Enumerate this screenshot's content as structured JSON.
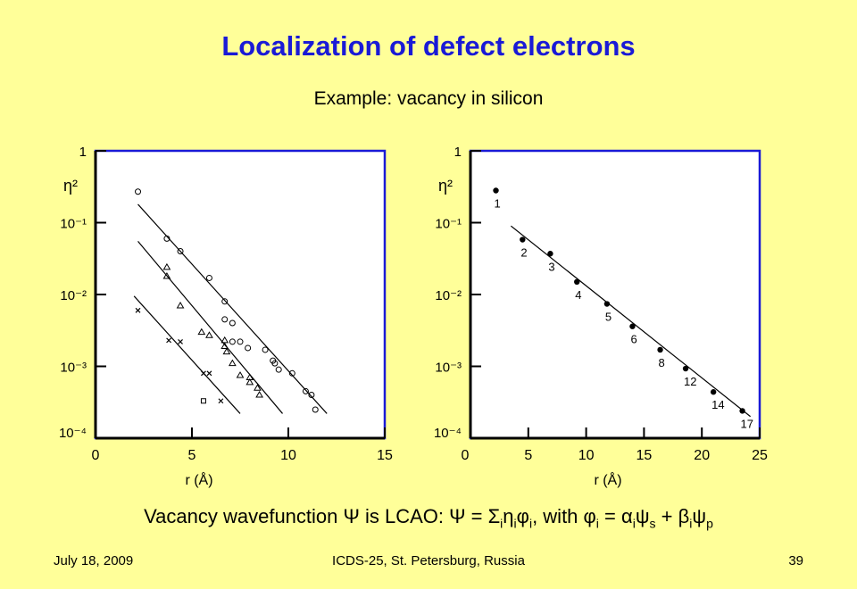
{
  "title": "Localization of defect electrons",
  "subtitle": "Example: vacancy in silicon",
  "caption": {
    "part1": "Vacancy wavefunction Ψ is LCAO: Ψ = Σ",
    "sub_i_1": "i",
    "eta": "η",
    "sub_i_2": "i",
    "phi": "φ",
    "sub_i_3": "i",
    "part2": ", with φ",
    "sub_i_4": "i",
    "part3": " = α",
    "sub_i_5": "i",
    "psi1": "ψ",
    "sub_s": "s",
    "part4": " + β",
    "sub_i_6": "i",
    "psi2": "ψ",
    "sub_p": "p"
  },
  "footer": {
    "date": "July 18, 2009",
    "conference": "ICDS-25, St. Petersburg, Russia",
    "page": "39"
  },
  "chart_data": [
    {
      "type": "scatter",
      "ylabel": "η²",
      "xlabel": "r (Å)",
      "xlim": [
        0,
        15
      ],
      "ylim": [
        0.0001,
        1
      ],
      "yscale": "log",
      "xticks": [
        "0",
        "5",
        "10",
        "15"
      ],
      "yticks": [
        "1",
        "10⁻¹",
        "10⁻²",
        "10⁻³",
        "10⁻⁴"
      ],
      "series": [
        {
          "marker": "circle",
          "points": [
            [
              2.2,
              0.27
            ],
            [
              3.7,
              0.06
            ],
            [
              4.4,
              0.04
            ],
            [
              5.9,
              0.017
            ],
            [
              6.7,
              0.008
            ],
            [
              6.7,
              0.0045
            ],
            [
              7.1,
              0.004
            ],
            [
              7.1,
              0.0022
            ],
            [
              7.5,
              0.0022
            ],
            [
              7.9,
              0.0018
            ],
            [
              8.8,
              0.0017
            ],
            [
              9.2,
              0.0012
            ],
            [
              9.3,
              0.0011
            ],
            [
              9.5,
              0.0009
            ],
            [
              10.2,
              0.0008
            ],
            [
              10.9,
              0.00045
            ],
            [
              11.2,
              0.0004
            ],
            [
              11.4,
              0.00025
            ]
          ]
        },
        {
          "marker": "triangle",
          "points": [
            [
              3.7,
              0.024
            ],
            [
              3.7,
              0.018
            ],
            [
              4.4,
              0.007
            ],
            [
              5.5,
              0.003
            ],
            [
              5.9,
              0.0027
            ],
            [
              6.7,
              0.0023
            ],
            [
              6.7,
              0.0019
            ],
            [
              6.8,
              0.0016
            ],
            [
              7.1,
              0.0011
            ],
            [
              7.5,
              0.00075
            ],
            [
              8.0,
              0.0007
            ],
            [
              8.0,
              0.0006
            ],
            [
              8.4,
              0.0005
            ],
            [
              8.5,
              0.0004
            ]
          ]
        },
        {
          "marker": "x",
          "points": [
            [
              2.2,
              0.006
            ],
            [
              3.8,
              0.0023
            ],
            [
              4.4,
              0.0022
            ],
            [
              5.6,
              0.0008
            ],
            [
              5.9,
              0.0008
            ],
            [
              6.5,
              0.00033
            ]
          ]
        },
        {
          "marker": "square",
          "points": [
            [
              5.6,
              0.00033
            ]
          ]
        }
      ],
      "fits": [
        {
          "x": [
            2.2,
            12.0
          ],
          "y": [
            0.18,
            0.00022
          ]
        },
        {
          "x": [
            2.2,
            9.7
          ],
          "y": [
            0.055,
            0.00022
          ]
        },
        {
          "x": [
            2.0,
            7.5
          ],
          "y": [
            0.0095,
            0.00022
          ]
        }
      ]
    },
    {
      "type": "scatter",
      "ylabel": "η²",
      "xlabel": "r (Å)",
      "xlim": [
        0,
        25
      ],
      "ylim": [
        0.0001,
        1
      ],
      "yscale": "log",
      "xticks": [
        "0",
        "5",
        "10",
        "15",
        "20",
        "25"
      ],
      "yticks": [
        "1",
        "10⁻¹",
        "10⁻²",
        "10⁻³",
        "10⁻⁴"
      ],
      "series": [
        {
          "marker": "dot",
          "points": [
            [
              2.2,
              0.28,
              "1"
            ],
            [
              4.5,
              0.058,
              "2"
            ],
            [
              6.9,
              0.037,
              "3"
            ],
            [
              9.2,
              0.015,
              "4"
            ],
            [
              11.8,
              0.0074,
              "5"
            ],
            [
              14.0,
              0.0036,
              "6"
            ],
            [
              16.4,
              0.0017,
              "8"
            ],
            [
              18.6,
              0.00093,
              "12"
            ],
            [
              21.0,
              0.00044,
              "14"
            ],
            [
              23.5,
              0.00024,
              "17"
            ]
          ]
        }
      ],
      "fits": [
        {
          "x": [
            3.5,
            24.2
          ],
          "y": [
            0.09,
            0.0002
          ]
        }
      ]
    }
  ]
}
